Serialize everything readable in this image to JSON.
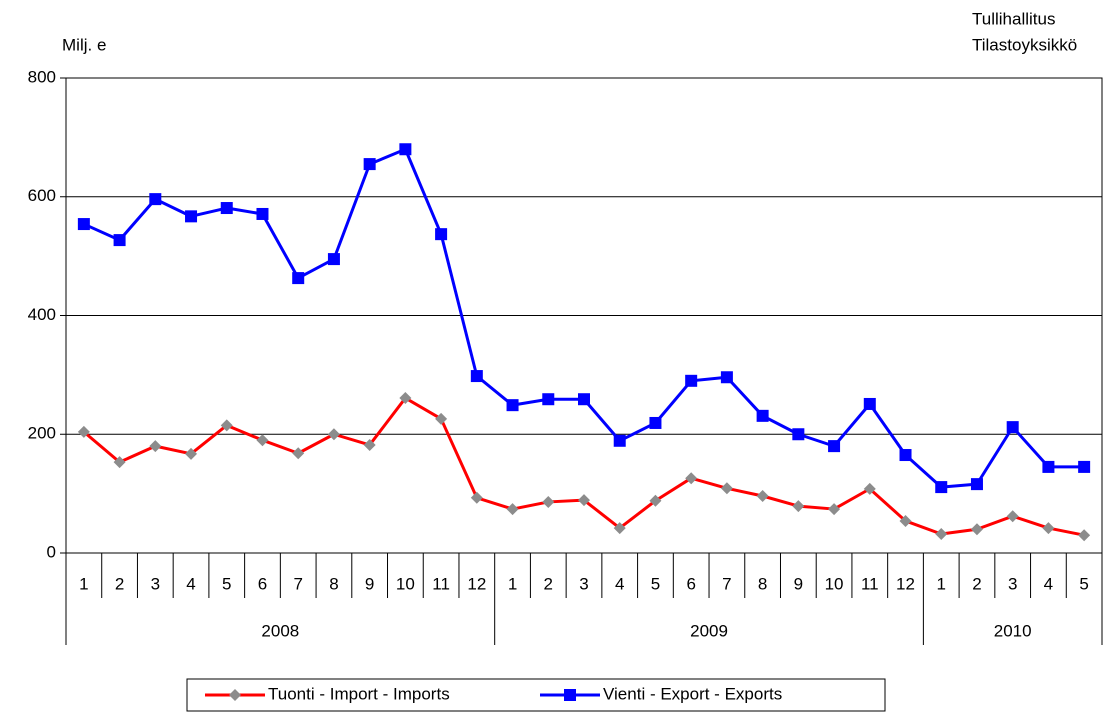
{
  "chart_data": {
    "type": "line",
    "y_label": "Milj. e",
    "source": [
      "Tullihallitus",
      "Tilastoyksikkö"
    ],
    "groups": [
      {
        "label": "2008",
        "categories": [
          "1",
          "2",
          "3",
          "4",
          "5",
          "6",
          "7",
          "8",
          "9",
          "10",
          "11",
          "12"
        ]
      },
      {
        "label": "2009",
        "categories": [
          "1",
          "2",
          "3",
          "4",
          "5",
          "6",
          "7",
          "8",
          "9",
          "10",
          "11",
          "12"
        ]
      },
      {
        "label": "2010",
        "categories": [
          "1",
          "2",
          "3",
          "4",
          "5"
        ]
      }
    ],
    "series": [
      {
        "name": "Tuonti - Import - Imports",
        "color": "#ff0000",
        "marker": "diamond",
        "marker_color": "#8c8c8c",
        "values": [
          204,
          153,
          180,
          167,
          215,
          190,
          168,
          200,
          182,
          261,
          226,
          93,
          74,
          86,
          89,
          42,
          88,
          126,
          109,
          96,
          79,
          74,
          108,
          54,
          32,
          40,
          62,
          42,
          30
        ]
      },
      {
        "name": "Vienti - Export - Exports",
        "color": "#0000ff",
        "marker": "square",
        "marker_color": "#0000ff",
        "values": [
          554,
          527,
          596,
          567,
          581,
          571,
          463,
          495,
          655,
          680,
          537,
          298,
          249,
          259,
          259,
          189,
          219,
          290,
          296,
          231,
          200,
          180,
          251,
          165,
          111,
          116,
          212,
          145,
          145
        ]
      }
    ],
    "ylim": [
      0,
      800
    ],
    "yticks": [
      0,
      200,
      400,
      600,
      800
    ],
    "grid": true
  }
}
